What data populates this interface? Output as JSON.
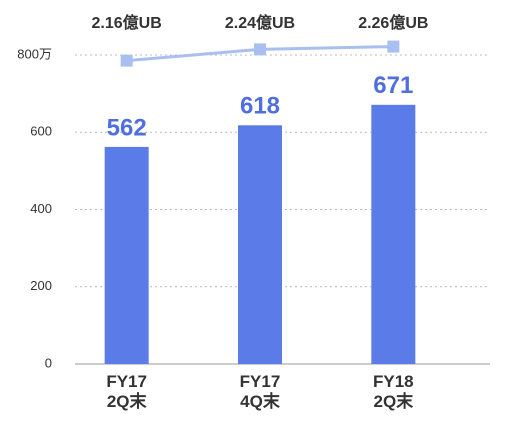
{
  "chart_data": {
    "type": "bar",
    "categories": [
      "FY17\n2Q末",
      "FY17\n4Q末",
      "FY18\n2Q末"
    ],
    "series": [
      {
        "type": "bar",
        "color": "#5b7be8",
        "values": [
          562,
          618,
          671
        ]
      },
      {
        "type": "line",
        "axis": "y2",
        "color": "#a9bff0",
        "values": [
          2.16,
          2.24,
          2.26
        ],
        "value_labels": [
          "2.16億UB",
          "2.24億UB",
          "2.26億UB"
        ]
      }
    ],
    "ylim": [
      0,
      800
    ],
    "yticks": [
      0,
      200,
      400,
      600,
      {
        "value": 800,
        "label": "800万"
      }
    ],
    "y2lim": [
      0,
      2.2
    ],
    "grid": true
  }
}
